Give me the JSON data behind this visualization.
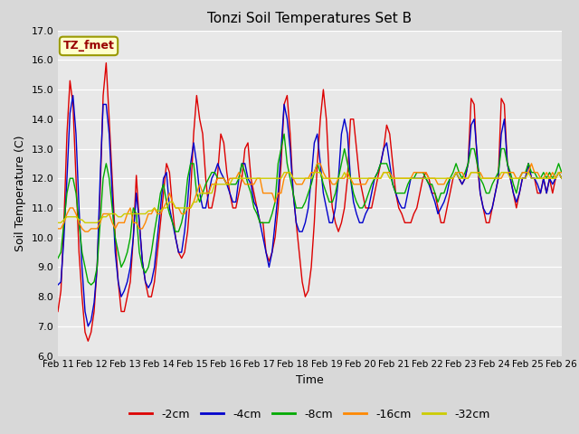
{
  "title": "Tonzi Soil Temperatures Set B",
  "xlabel": "Time",
  "ylabel": "Soil Temperature (C)",
  "ylim": [
    6.0,
    17.0
  ],
  "yticks": [
    6.0,
    7.0,
    8.0,
    9.0,
    10.0,
    11.0,
    12.0,
    13.0,
    14.0,
    15.0,
    16.0,
    17.0
  ],
  "x_labels": [
    "Feb 11",
    "Feb 12",
    "Feb 13",
    "Feb 14",
    "Feb 15",
    "Feb 16",
    "Feb 17",
    "Feb 18",
    "Feb 19",
    "Feb 20",
    "Feb 21",
    "Feb 22",
    "Feb 23",
    "Feb 24",
    "Feb 25",
    "Feb 26"
  ],
  "annotation_text": "TZ_fmet",
  "annotation_bg": "#ffffcc",
  "annotation_border": "#999900",
  "annotation_text_color": "#990000",
  "colors": {
    "-2cm": "#dd0000",
    "-4cm": "#0000cc",
    "-8cm": "#00aa00",
    "-16cm": "#ff8800",
    "-32cm": "#cccc00"
  },
  "legend_order": [
    "-2cm",
    "-4cm",
    "-8cm",
    "-16cm",
    "-32cm"
  ],
  "fig_bg": "#d8d8d8",
  "plot_bg": "#e8e8e8",
  "series": {
    "-2cm": [
      7.5,
      8.2,
      10.5,
      13.5,
      15.3,
      14.5,
      12.0,
      9.5,
      8.0,
      6.8,
      6.5,
      6.8,
      7.5,
      9.0,
      11.5,
      14.8,
      15.9,
      14.0,
      12.0,
      10.0,
      8.5,
      7.5,
      7.5,
      8.0,
      8.5,
      10.0,
      12.1,
      10.5,
      9.2,
      8.5,
      8.0,
      8.0,
      8.5,
      9.5,
      10.5,
      11.5,
      12.5,
      12.2,
      11.0,
      10.0,
      9.5,
      9.3,
      9.5,
      10.2,
      11.5,
      13.5,
      14.8,
      14.0,
      13.5,
      12.0,
      11.0,
      11.0,
      11.5,
      12.2,
      13.5,
      13.2,
      12.2,
      11.5,
      11.0,
      11.0,
      11.5,
      12.0,
      13.0,
      13.2,
      12.0,
      11.5,
      11.0,
      10.5,
      10.5,
      9.5,
      9.2,
      9.5,
      10.0,
      11.0,
      12.5,
      14.5,
      14.8,
      13.5,
      11.5,
      10.5,
      9.5,
      8.5,
      8.0,
      8.2,
      9.0,
      10.5,
      12.5,
      14.0,
      15.0,
      14.0,
      12.0,
      11.0,
      10.5,
      10.2,
      10.5,
      11.0,
      12.0,
      14.0,
      14.0,
      13.0,
      12.0,
      11.5,
      11.0,
      11.0,
      11.0,
      11.5,
      12.0,
      12.5,
      13.0,
      13.8,
      13.5,
      12.5,
      11.5,
      11.0,
      10.8,
      10.5,
      10.5,
      10.5,
      10.8,
      11.0,
      11.5,
      12.0,
      12.2,
      12.0,
      11.5,
      11.5,
      11.0,
      10.5,
      10.5,
      11.0,
      11.5,
      12.0,
      12.2,
      12.0,
      11.8,
      12.0,
      12.5,
      14.7,
      14.5,
      12.5,
      11.5,
      11.0,
      10.5,
      10.5,
      11.0,
      11.5,
      12.0,
      14.7,
      14.5,
      12.5,
      12.0,
      11.5,
      11.0,
      11.5,
      12.0,
      12.0,
      12.5,
      12.0,
      12.0,
      11.5,
      11.5,
      12.0,
      11.5,
      12.0,
      11.5,
      12.0,
      12.2,
      12.0
    ],
    "-4cm": [
      8.4,
      8.5,
      10.0,
      12.0,
      14.2,
      14.8,
      13.5,
      11.0,
      9.0,
      7.5,
      7.0,
      7.2,
      7.8,
      9.0,
      12.0,
      14.5,
      14.5,
      13.5,
      11.5,
      9.5,
      8.5,
      8.0,
      8.2,
      8.5,
      9.0,
      10.0,
      11.5,
      10.5,
      9.2,
      8.5,
      8.3,
      8.5,
      9.0,
      10.0,
      11.0,
      12.0,
      12.2,
      11.0,
      10.5,
      10.0,
      9.5,
      9.5,
      10.2,
      11.2,
      12.5,
      13.2,
      12.5,
      11.5,
      11.0,
      11.0,
      11.5,
      12.0,
      12.2,
      12.5,
      12.2,
      12.0,
      11.8,
      11.5,
      11.2,
      11.2,
      12.0,
      12.5,
      12.5,
      12.0,
      11.8,
      11.2,
      11.0,
      10.5,
      10.0,
      9.5,
      9.0,
      9.5,
      10.5,
      11.5,
      13.0,
      14.5,
      14.0,
      13.0,
      11.5,
      10.5,
      10.2,
      10.2,
      10.5,
      11.0,
      12.0,
      13.2,
      13.5,
      12.5,
      11.5,
      11.0,
      10.5,
      10.5,
      11.0,
      12.0,
      13.5,
      14.0,
      13.5,
      12.0,
      11.2,
      10.8,
      10.5,
      10.5,
      10.8,
      11.0,
      11.5,
      12.0,
      12.2,
      12.5,
      13.0,
      13.2,
      12.5,
      11.8,
      11.5,
      11.2,
      11.0,
      11.0,
      11.5,
      12.0,
      12.0,
      12.0,
      12.0,
      12.0,
      12.0,
      11.8,
      11.5,
      11.2,
      10.8,
      11.0,
      11.2,
      11.5,
      12.0,
      12.0,
      12.2,
      12.0,
      11.8,
      12.0,
      12.5,
      13.8,
      14.0,
      12.8,
      11.5,
      11.0,
      10.8,
      10.8,
      11.0,
      11.5,
      12.0,
      13.5,
      14.0,
      12.5,
      12.0,
      11.5,
      11.2,
      11.5,
      12.0,
      12.0,
      12.5,
      12.0,
      12.0,
      11.8,
      11.5,
      12.0,
      11.5,
      12.0,
      11.8,
      12.0,
      12.2,
      12.0
    ],
    "-8cm": [
      9.3,
      9.5,
      10.5,
      11.5,
      12.0,
      12.0,
      11.5,
      10.5,
      9.5,
      9.0,
      8.5,
      8.4,
      8.5,
      9.0,
      10.5,
      12.0,
      12.5,
      12.0,
      11.0,
      10.0,
      9.5,
      9.0,
      9.2,
      9.5,
      10.0,
      11.0,
      10.8,
      9.5,
      9.0,
      8.8,
      9.0,
      9.5,
      10.2,
      10.8,
      11.5,
      11.8,
      11.2,
      10.8,
      10.5,
      10.2,
      10.2,
      10.5,
      11.0,
      12.0,
      12.5,
      12.5,
      11.5,
      11.2,
      11.5,
      11.8,
      12.0,
      12.2,
      12.2,
      12.0,
      12.0,
      12.0,
      11.8,
      11.8,
      11.8,
      11.8,
      12.0,
      12.5,
      12.2,
      11.8,
      11.5,
      11.0,
      10.8,
      10.5,
      10.5,
      10.5,
      10.5,
      10.8,
      11.2,
      12.5,
      13.0,
      13.5,
      12.5,
      12.0,
      11.5,
      11.0,
      11.0,
      11.0,
      11.2,
      11.5,
      11.8,
      12.2,
      12.5,
      12.2,
      11.8,
      11.5,
      11.2,
      11.2,
      11.5,
      12.0,
      12.5,
      13.0,
      12.5,
      12.0,
      11.5,
      11.2,
      11.0,
      11.0,
      11.2,
      11.5,
      11.8,
      12.0,
      12.2,
      12.5,
      12.5,
      12.5,
      12.2,
      11.8,
      11.5,
      11.5,
      11.5,
      11.5,
      11.8,
      12.0,
      12.0,
      12.2,
      12.2,
      12.2,
      12.0,
      11.8,
      11.8,
      11.5,
      11.2,
      11.5,
      11.5,
      11.8,
      12.0,
      12.2,
      12.5,
      12.2,
      12.0,
      12.2,
      12.5,
      13.0,
      13.0,
      12.5,
      12.0,
      11.8,
      11.5,
      11.5,
      11.8,
      12.0,
      12.2,
      13.0,
      13.0,
      12.5,
      12.2,
      11.8,
      11.5,
      12.0,
      12.2,
      12.2,
      12.5,
      12.2,
      12.2,
      12.0,
      12.0,
      12.2,
      12.0,
      12.2,
      12.0,
      12.2,
      12.5,
      12.2
    ],
    "-16cm": [
      10.3,
      10.3,
      10.5,
      10.8,
      11.0,
      11.0,
      10.8,
      10.5,
      10.3,
      10.2,
      10.2,
      10.3,
      10.3,
      10.3,
      10.5,
      10.8,
      10.8,
      10.8,
      10.5,
      10.3,
      10.5,
      10.5,
      10.5,
      10.8,
      11.0,
      10.5,
      10.5,
      10.3,
      10.3,
      10.5,
      10.8,
      10.8,
      11.0,
      10.8,
      10.8,
      11.0,
      11.2,
      11.5,
      11.2,
      11.0,
      11.0,
      10.8,
      10.8,
      11.0,
      11.0,
      11.2,
      11.5,
      11.8,
      11.5,
      11.5,
      11.5,
      11.8,
      11.8,
      12.0,
      12.0,
      12.0,
      11.8,
      12.0,
      12.0,
      12.0,
      12.2,
      12.0,
      11.8,
      11.8,
      11.8,
      11.8,
      12.0,
      12.0,
      11.5,
      11.5,
      11.5,
      11.5,
      11.2,
      11.5,
      11.5,
      12.0,
      12.2,
      12.2,
      12.0,
      11.8,
      11.8,
      11.8,
      12.0,
      12.0,
      12.2,
      12.2,
      12.5,
      12.5,
      12.2,
      12.0,
      12.0,
      11.8,
      11.8,
      12.0,
      12.0,
      12.0,
      12.2,
      12.0,
      11.8,
      11.8,
      11.8,
      11.8,
      11.8,
      12.0,
      12.0,
      12.0,
      12.0,
      12.0,
      12.2,
      12.2,
      12.2,
      12.0,
      12.0,
      12.0,
      12.0,
      12.0,
      12.0,
      12.0,
      12.2,
      12.2,
      12.2,
      12.2,
      12.2,
      12.0,
      12.0,
      12.0,
      11.8,
      11.8,
      11.8,
      12.0,
      12.0,
      12.0,
      12.2,
      12.2,
      12.2,
      12.0,
      12.0,
      12.2,
      12.2,
      12.2,
      12.2,
      12.0,
      12.0,
      12.0,
      12.0,
      12.0,
      12.0,
      12.0,
      12.2,
      12.2,
      12.2,
      12.2,
      12.0,
      12.0,
      12.2,
      12.2,
      12.2,
      12.5,
      12.2,
      12.2,
      12.0,
      12.0,
      12.2,
      12.0,
      12.2,
      12.0,
      12.2,
      12.2
    ],
    "-32cm": [
      10.5,
      10.5,
      10.6,
      10.7,
      10.7,
      10.7,
      10.7,
      10.6,
      10.6,
      10.5,
      10.5,
      10.5,
      10.5,
      10.5,
      10.6,
      10.7,
      10.7,
      10.8,
      10.8,
      10.8,
      10.7,
      10.7,
      10.8,
      10.8,
      10.8,
      10.8,
      10.8,
      10.8,
      10.8,
      10.8,
      10.9,
      10.9,
      11.0,
      10.9,
      10.9,
      11.0,
      11.0,
      11.2,
      11.2,
      11.0,
      11.0,
      11.0,
      11.0,
      11.0,
      11.0,
      11.2,
      11.2,
      11.5,
      11.5,
      11.5,
      11.5,
      11.5,
      11.8,
      11.8,
      11.8,
      11.8,
      11.8,
      11.8,
      12.0,
      12.0,
      12.0,
      12.0,
      12.0,
      12.0,
      12.0,
      12.0,
      12.0,
      12.0,
      12.0,
      12.0,
      12.0,
      12.0,
      12.0,
      12.0,
      12.0,
      12.2,
      12.2,
      12.2,
      12.0,
      12.0,
      12.0,
      12.0,
      12.0,
      12.0,
      12.0,
      12.2,
      12.2,
      12.2,
      12.0,
      12.0,
      12.0,
      12.0,
      12.0,
      12.0,
      12.0,
      12.2,
      12.0,
      12.0,
      12.0,
      12.0,
      12.0,
      12.0,
      12.0,
      12.0,
      12.0,
      12.0,
      12.0,
      12.0,
      12.2,
      12.2,
      12.0,
      12.0,
      12.0,
      12.0,
      12.0,
      12.0,
      12.0,
      12.0,
      12.0,
      12.0,
      12.0,
      12.0,
      12.0,
      12.0,
      12.0,
      12.0,
      12.0,
      12.0,
      12.0,
      12.0,
      12.0,
      12.0,
      12.2,
      12.0,
      12.0,
      12.0,
      12.0,
      12.2,
      12.2,
      12.2,
      12.0,
      12.0,
      12.0,
      12.0,
      12.0,
      12.0,
      12.0,
      12.2,
      12.2,
      12.2,
      12.0,
      12.0,
      12.0,
      12.0,
      12.0,
      12.0,
      12.2,
      12.0,
      12.0,
      12.0,
      12.0,
      12.0,
      12.0,
      12.0,
      12.0,
      12.0,
      12.2,
      12.0
    ]
  }
}
